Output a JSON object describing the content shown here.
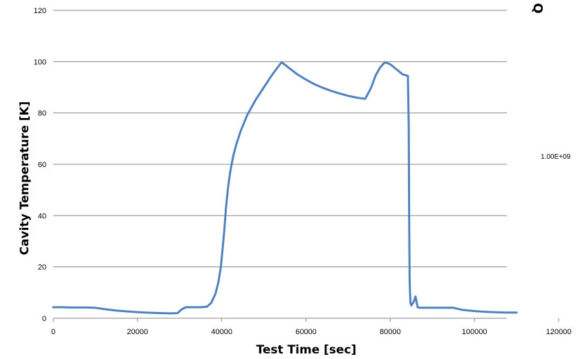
{
  "chart_data": {
    "type": "line",
    "title": "",
    "xlabel": "Test Time [sec]",
    "ylabel": "Cavity Temperature [K]",
    "xlim": [
      0,
      120000
    ],
    "ylim": [
      0,
      120
    ],
    "xticks": [
      0,
      20000,
      40000,
      60000,
      80000,
      100000,
      120000
    ],
    "yticks": [
      0,
      20,
      40,
      60,
      80,
      100,
      120
    ],
    "grid": "horizontal",
    "legend": "none",
    "line_color": "#4F81BD",
    "series": [
      {
        "x": [
          0,
          2000,
          4000,
          6000,
          8000,
          10000,
          12000,
          15000,
          18000,
          20000,
          22000,
          24000,
          26000,
          28000,
          29500,
          30500,
          31500,
          33000,
          35000,
          36500,
          37500,
          38500,
          39200,
          39800,
          40200,
          40600,
          41000,
          41500,
          42000,
          42700,
          43500,
          44500,
          46000,
          48000,
          50000,
          52000,
          54200,
          56000,
          58000,
          60000,
          62000,
          64000,
          66000,
          68000,
          70000,
          72000,
          74000,
          74500,
          75500,
          76500,
          77500,
          78700,
          80000,
          81500,
          83000,
          84200,
          84400,
          84500,
          84600,
          84700,
          84800,
          85000,
          85300,
          85600,
          86000,
          86300,
          86500,
          86800,
          87000,
          87500,
          88000,
          90000,
          92000,
          94000,
          95000,
          97000,
          100000,
          103000,
          106000,
          108000,
          110000
        ],
        "y": [
          4.3,
          4.3,
          4.2,
          4.2,
          4.2,
          4.1,
          3.6,
          3.0,
          2.6,
          2.4,
          2.2,
          2.1,
          2.0,
          1.9,
          2.0,
          3.5,
          4.3,
          4.3,
          4.3,
          4.5,
          6.0,
          9.5,
          14.0,
          20.0,
          27.0,
          34.0,
          43.0,
          51.0,
          57.0,
          63.0,
          68.0,
          73.0,
          79.0,
          85.0,
          90.0,
          95.0,
          99.8,
          97.5,
          95.0,
          93.0,
          91.2,
          89.8,
          88.6,
          87.6,
          86.7,
          86.0,
          85.5,
          86.8,
          90.0,
          94.5,
          97.5,
          99.8,
          99.0,
          97.0,
          95.0,
          94.5,
          75.0,
          40.0,
          15.0,
          10.0,
          6.0,
          5.0,
          5.7,
          6.5,
          8.5,
          6.0,
          4.3,
          4.2,
          4.1,
          4.1,
          4.1,
          4.1,
          4.1,
          4.1,
          4.1,
          3.3,
          2.8,
          2.5,
          2.3,
          2.2,
          2.2
        ]
      }
    ]
  },
  "side_label": "1.00E+09",
  "corner_fragment": "Q"
}
